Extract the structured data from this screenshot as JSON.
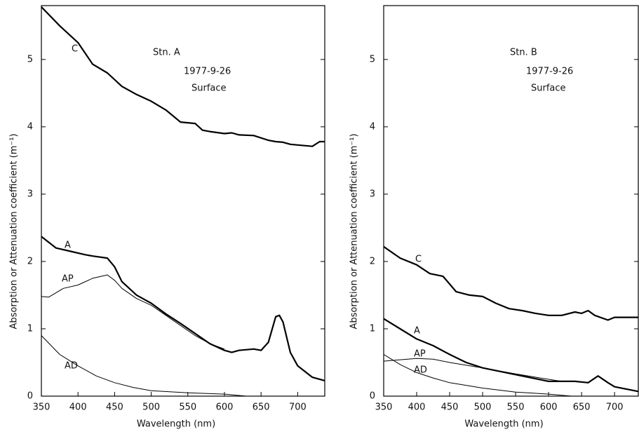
{
  "chart_data": [
    {
      "type": "line",
      "xlabel": "Wavelength (nm)",
      "ylabel": "Absorption or Attenuation coefficient (m⁻¹)",
      "annotations": [
        "Stn. A",
        "1977-9-26",
        "Surface"
      ],
      "xlim": [
        350,
        737
      ],
      "ylim": [
        0,
        5.8
      ],
      "xticks": [
        350,
        400,
        450,
        500,
        550,
        600,
        650,
        700
      ],
      "yticks": [
        0,
        1,
        2,
        3,
        4,
        5
      ],
      "series": [
        {
          "name": "C",
          "color": "#000000",
          "width": 2.2,
          "x": [
            350,
            375,
            400,
            420,
            440,
            460,
            480,
            500,
            520,
            540,
            560,
            570,
            580,
            600,
            610,
            620,
            640,
            660,
            670,
            680,
            690,
            700,
            720,
            730,
            737
          ],
          "values": [
            5.78,
            5.5,
            5.25,
            4.93,
            4.8,
            4.6,
            4.48,
            4.38,
            4.25,
            4.07,
            4.05,
            3.95,
            3.93,
            3.9,
            3.91,
            3.88,
            3.87,
            3.8,
            3.78,
            3.77,
            3.74,
            3.73,
            3.71,
            3.78,
            3.78
          ]
        },
        {
          "name": "A",
          "color": "#000000",
          "width": 2.2,
          "x": [
            350,
            370,
            390,
            410,
            420,
            440,
            450,
            460,
            480,
            500,
            520,
            540,
            560,
            580,
            600,
            610,
            620,
            640,
            650,
            660,
            670,
            675,
            680,
            690,
            700,
            720,
            737
          ],
          "values": [
            2.37,
            2.2,
            2.15,
            2.1,
            2.08,
            2.05,
            1.92,
            1.7,
            1.5,
            1.38,
            1.22,
            1.08,
            0.93,
            0.78,
            0.68,
            0.65,
            0.68,
            0.7,
            0.68,
            0.8,
            1.18,
            1.2,
            1.1,
            0.65,
            0.45,
            0.28,
            0.23
          ]
        },
        {
          "name": "AP",
          "color": "#000000",
          "width": 1,
          "x": [
            350,
            360,
            380,
            400,
            420,
            440,
            450,
            460,
            480,
            500,
            520,
            540,
            560,
            580,
            600
          ],
          "values": [
            1.48,
            1.47,
            1.6,
            1.65,
            1.75,
            1.8,
            1.72,
            1.6,
            1.45,
            1.35,
            1.2,
            1.05,
            0.9,
            0.78,
            0.7
          ]
        },
        {
          "name": "AD",
          "color": "#000000",
          "width": 1,
          "x": [
            350,
            375,
            400,
            425,
            450,
            475,
            500,
            550,
            600,
            630
          ],
          "values": [
            0.9,
            0.62,
            0.45,
            0.3,
            0.2,
            0.13,
            0.08,
            0.05,
            0.03,
            0
          ]
        }
      ]
    },
    {
      "type": "line",
      "xlabel": "Wavelength (nm)",
      "ylabel": "Absorption or Attenuation coefficient (m⁻¹)",
      "annotations": [
        "Stn. B",
        "1977-9-26",
        "Surface"
      ],
      "xlim": [
        350,
        736
      ],
      "ylim": [
        0,
        5.8
      ],
      "xticks": [
        350,
        400,
        450,
        500,
        550,
        600,
        650,
        700
      ],
      "yticks": [
        0,
        1,
        2,
        3,
        4,
        5
      ],
      "series": [
        {
          "name": "C",
          "color": "#000000",
          "width": 2.2,
          "x": [
            350,
            375,
            400,
            420,
            440,
            460,
            480,
            500,
            520,
            540,
            560,
            580,
            600,
            620,
            640,
            650,
            660,
            670,
            690,
            700,
            736
          ],
          "values": [
            2.22,
            2.05,
            1.95,
            1.82,
            1.78,
            1.55,
            1.5,
            1.48,
            1.38,
            1.3,
            1.27,
            1.23,
            1.2,
            1.2,
            1.25,
            1.23,
            1.27,
            1.2,
            1.13,
            1.17,
            1.17
          ]
        },
        {
          "name": "A",
          "color": "#000000",
          "width": 2.2,
          "x": [
            350,
            375,
            400,
            425,
            450,
            475,
            500,
            550,
            600,
            640,
            660,
            675,
            690,
            700,
            736
          ],
          "values": [
            1.15,
            1.0,
            0.85,
            0.75,
            0.62,
            0.5,
            0.42,
            0.32,
            0.22,
            0.22,
            0.2,
            0.3,
            0.2,
            0.14,
            0.07
          ]
        },
        {
          "name": "AP",
          "color": "#000000",
          "width": 1,
          "x": [
            350,
            375,
            400,
            425,
            450,
            500,
            550,
            600,
            620
          ],
          "values": [
            0.52,
            0.54,
            0.56,
            0.55,
            0.5,
            0.42,
            0.33,
            0.25,
            0.22
          ]
        },
        {
          "name": "AD",
          "color": "#000000",
          "width": 1,
          "x": [
            350,
            375,
            400,
            425,
            450,
            500,
            550,
            600,
            635
          ],
          "values": [
            0.62,
            0.47,
            0.35,
            0.27,
            0.2,
            0.12,
            0.06,
            0.03,
            0
          ]
        }
      ]
    }
  ]
}
